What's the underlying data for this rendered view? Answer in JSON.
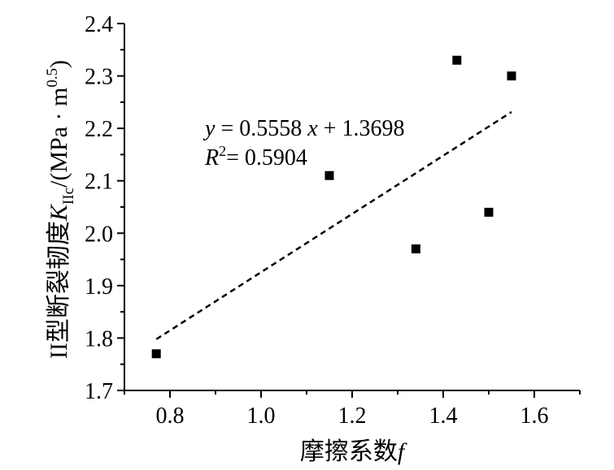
{
  "chart_data": {
    "type": "scatter",
    "points": [
      {
        "x": 0.77,
        "y": 1.77
      },
      {
        "x": 1.15,
        "y": 2.11
      },
      {
        "x": 1.34,
        "y": 1.97
      },
      {
        "x": 1.43,
        "y": 2.33
      },
      {
        "x": 1.5,
        "y": 2.04
      },
      {
        "x": 1.55,
        "y": 2.3
      }
    ],
    "fit": {
      "slope": 0.5558,
      "intercept": 1.3698,
      "x_range": [
        0.77,
        1.55
      ],
      "style": "dashed"
    },
    "annotation": {
      "equation": "y = 0.5558 x + 1.3698",
      "eq_y": "y",
      "eq_mid": " = 0.5558 ",
      "eq_x": "x",
      "eq_end": " + 1.3698",
      "r2_R": "R",
      "r2_sup": "2",
      "r2_val": "= 0.5904"
    },
    "xlabel": "摩擦系数f",
    "xlabel_main": "摩擦系数",
    "xlabel_var": "f",
    "ylabel": "II型断裂韧度KIIc/(MPa · m0.5)",
    "ylabel_parts": {
      "prefix": "II型断裂韧度",
      "K": "K",
      "sub": "IIc",
      "unit": "/(MPa · m",
      "exp": "0.5",
      "close": ")"
    },
    "xlim": [
      0.7,
      1.7
    ],
    "ylim": [
      1.7,
      2.4
    ],
    "xticks": [
      "0.8",
      "1.0",
      "1.2",
      "1.4",
      "1.6"
    ],
    "yticks": [
      "1.7",
      "1.8",
      "1.9",
      "2.0",
      "2.1",
      "2.2",
      "2.3",
      "2.4"
    ],
    "grid": false,
    "legend": false
  }
}
